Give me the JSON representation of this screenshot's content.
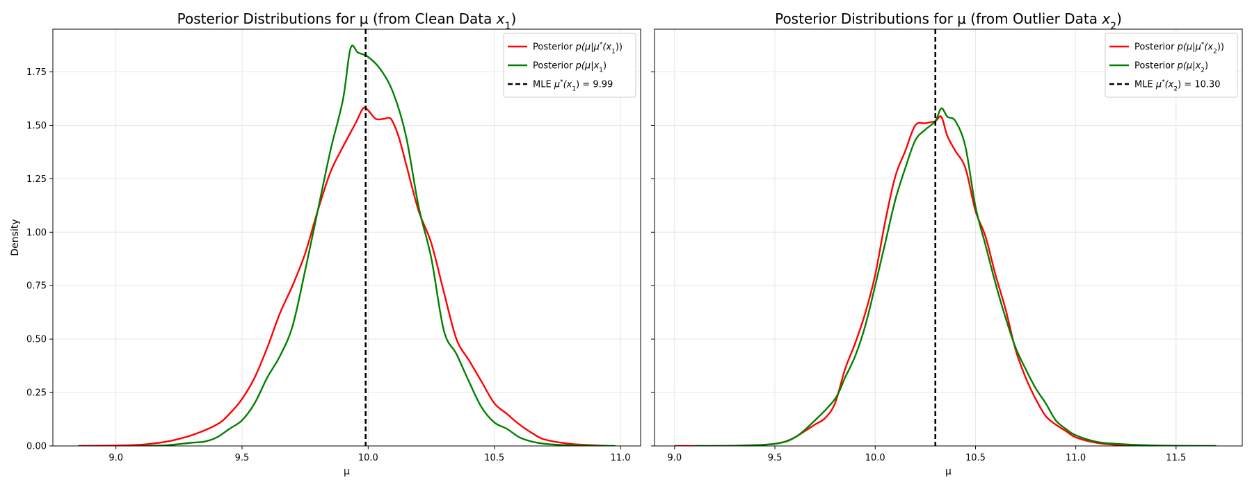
{
  "chart_data": [
    {
      "type": "line",
      "title_prefix": "Posterior Distributions for μ (from Clean Data ",
      "title_var": "x",
      "title_sub": "1",
      "title_suffix": ")",
      "xlabel": "μ",
      "ylabel": "Density",
      "xlim": [
        8.75,
        11.08
      ],
      "ylim": [
        0,
        1.95
      ],
      "xticks": [
        "9.0",
        "9.5",
        "10.0",
        "10.5",
        "11.0"
      ],
      "yticks": [
        "0.00",
        "0.25",
        "0.50",
        "0.75",
        "1.00",
        "1.25",
        "1.50",
        "1.75"
      ],
      "grid": true,
      "legend_position": "top-right",
      "colors": {
        "red": "#ff0000",
        "green": "#008000",
        "mle": "#000000"
      },
      "series": [
        {
          "name": "Posterior p(μ|μ*(x1))",
          "legend": {
            "pre": "Posterior ",
            "math": "p(μ|μ",
            "sup": "*",
            "mid": "(x",
            "sub": "1",
            "post": "))"
          },
          "color": "#ff0000",
          "points": [
            [
              8.85,
              0.0
            ],
            [
              9.0,
              0.002
            ],
            [
              9.1,
              0.006
            ],
            [
              9.2,
              0.02
            ],
            [
              9.3,
              0.05
            ],
            [
              9.4,
              0.1
            ],
            [
              9.45,
              0.15
            ],
            [
              9.5,
              0.22
            ],
            [
              9.55,
              0.32
            ],
            [
              9.6,
              0.46
            ],
            [
              9.65,
              0.62
            ],
            [
              9.7,
              0.75
            ],
            [
              9.75,
              0.9
            ],
            [
              9.8,
              1.1
            ],
            [
              9.85,
              1.28
            ],
            [
              9.9,
              1.4
            ],
            [
              9.95,
              1.51
            ],
            [
              9.98,
              1.58
            ],
            [
              10.0,
              1.57
            ],
            [
              10.03,
              1.53
            ],
            [
              10.06,
              1.53
            ],
            [
              10.09,
              1.53
            ],
            [
              10.12,
              1.45
            ],
            [
              10.15,
              1.32
            ],
            [
              10.2,
              1.1
            ],
            [
              10.25,
              0.95
            ],
            [
              10.3,
              0.72
            ],
            [
              10.35,
              0.5
            ],
            [
              10.4,
              0.4
            ],
            [
              10.45,
              0.3
            ],
            [
              10.5,
              0.2
            ],
            [
              10.55,
              0.15
            ],
            [
              10.6,
              0.1
            ],
            [
              10.65,
              0.06
            ],
            [
              10.7,
              0.03
            ],
            [
              10.8,
              0.01
            ],
            [
              10.9,
              0.003
            ],
            [
              10.95,
              0.0
            ]
          ]
        },
        {
          "name": "Posterior p(μ|x1)",
          "legend": {
            "pre": "Posterior ",
            "math": "p(μ|x",
            "sup": "",
            "mid": "",
            "sub": "1",
            "post": ")"
          },
          "color": "#008000",
          "points": [
            [
              9.1,
              0.0
            ],
            [
              9.2,
              0.003
            ],
            [
              9.3,
              0.015
            ],
            [
              9.35,
              0.02
            ],
            [
              9.4,
              0.04
            ],
            [
              9.45,
              0.08
            ],
            [
              9.5,
              0.12
            ],
            [
              9.55,
              0.2
            ],
            [
              9.6,
              0.32
            ],
            [
              9.65,
              0.42
            ],
            [
              9.7,
              0.56
            ],
            [
              9.75,
              0.82
            ],
            [
              9.8,
              1.1
            ],
            [
              9.85,
              1.38
            ],
            [
              9.9,
              1.62
            ],
            [
              9.93,
              1.86
            ],
            [
              9.96,
              1.84
            ],
            [
              10.0,
              1.82
            ],
            [
              10.05,
              1.76
            ],
            [
              10.1,
              1.65
            ],
            [
              10.15,
              1.45
            ],
            [
              10.2,
              1.12
            ],
            [
              10.25,
              0.88
            ],
            [
              10.3,
              0.54
            ],
            [
              10.35,
              0.43
            ],
            [
              10.4,
              0.3
            ],
            [
              10.45,
              0.18
            ],
            [
              10.5,
              0.11
            ],
            [
              10.55,
              0.08
            ],
            [
              10.6,
              0.04
            ],
            [
              10.65,
              0.02
            ],
            [
              10.7,
              0.01
            ],
            [
              10.8,
              0.003
            ],
            [
              10.98,
              0.0
            ]
          ]
        }
      ],
      "mle": {
        "value": 9.99,
        "legend": {
          "pre": "MLE ",
          "math": "μ",
          "sup": "*",
          "mid": "(x",
          "sub": "1",
          "post": ") = 9.99"
        },
        "color": "#000000"
      }
    },
    {
      "type": "line",
      "title_prefix": "Posterior Distributions for μ (from Outlier Data ",
      "title_var": "x",
      "title_sub": "2",
      "title_suffix": ")",
      "xlabel": "μ",
      "ylabel": "",
      "xlim": [
        8.9,
        11.83
      ],
      "ylim": [
        0,
        1.95
      ],
      "xticks": [
        "9.0",
        "9.5",
        "10.0",
        "10.5",
        "11.0",
        "11.5"
      ],
      "yticks": [],
      "grid": true,
      "legend_position": "top-right",
      "colors": {
        "red": "#ff0000",
        "green": "#008000",
        "mle": "#000000"
      },
      "series": [
        {
          "name": "Posterior p(μ|μ*(x2))",
          "legend": {
            "pre": "Posterior ",
            "math": "p(μ|μ",
            "sup": "*",
            "mid": "(x",
            "sub": "2",
            "post": "))"
          },
          "color": "#ff0000",
          "points": [
            [
              9.0,
              0.0
            ],
            [
              9.2,
              0.0
            ],
            [
              9.4,
              0.003
            ],
            [
              9.5,
              0.01
            ],
            [
              9.55,
              0.02
            ],
            [
              9.6,
              0.04
            ],
            [
              9.65,
              0.07
            ],
            [
              9.7,
              0.1
            ],
            [
              9.75,
              0.13
            ],
            [
              9.8,
              0.2
            ],
            [
              9.85,
              0.36
            ],
            [
              9.9,
              0.48
            ],
            [
              9.95,
              0.62
            ],
            [
              10.0,
              0.8
            ],
            [
              10.05,
              1.05
            ],
            [
              10.1,
              1.26
            ],
            [
              10.15,
              1.38
            ],
            [
              10.2,
              1.5
            ],
            [
              10.25,
              1.51
            ],
            [
              10.3,
              1.52
            ],
            [
              10.33,
              1.54
            ],
            [
              10.36,
              1.45
            ],
            [
              10.4,
              1.38
            ],
            [
              10.45,
              1.3
            ],
            [
              10.5,
              1.1
            ],
            [
              10.55,
              0.98
            ],
            [
              10.6,
              0.8
            ],
            [
              10.65,
              0.64
            ],
            [
              10.7,
              0.45
            ],
            [
              10.75,
              0.32
            ],
            [
              10.8,
              0.22
            ],
            [
              10.85,
              0.14
            ],
            [
              10.9,
              0.1
            ],
            [
              10.95,
              0.07
            ],
            [
              11.0,
              0.04
            ],
            [
              11.1,
              0.015
            ],
            [
              11.2,
              0.005
            ],
            [
              11.4,
              0.0
            ]
          ]
        },
        {
          "name": "Posterior p(μ|x2)",
          "legend": {
            "pre": "Posterior ",
            "math": "p(μ|x",
            "sup": "",
            "mid": "",
            "sub": "2",
            "post": ")"
          },
          "color": "#008000",
          "points": [
            [
              9.1,
              0.0
            ],
            [
              9.3,
              0.001
            ],
            [
              9.5,
              0.01
            ],
            [
              9.6,
              0.04
            ],
            [
              9.7,
              0.12
            ],
            [
              9.8,
              0.22
            ],
            [
              9.85,
              0.32
            ],
            [
              9.9,
              0.42
            ],
            [
              9.95,
              0.56
            ],
            [
              10.0,
              0.75
            ],
            [
              10.05,
              0.95
            ],
            [
              10.1,
              1.15
            ],
            [
              10.15,
              1.3
            ],
            [
              10.2,
              1.43
            ],
            [
              10.25,
              1.48
            ],
            [
              10.3,
              1.52
            ],
            [
              10.33,
              1.58
            ],
            [
              10.36,
              1.54
            ],
            [
              10.4,
              1.52
            ],
            [
              10.45,
              1.4
            ],
            [
              10.5,
              1.12
            ],
            [
              10.55,
              0.94
            ],
            [
              10.6,
              0.76
            ],
            [
              10.65,
              0.6
            ],
            [
              10.7,
              0.46
            ],
            [
              10.75,
              0.36
            ],
            [
              10.8,
              0.27
            ],
            [
              10.85,
              0.2
            ],
            [
              10.9,
              0.12
            ],
            [
              10.95,
              0.08
            ],
            [
              11.0,
              0.05
            ],
            [
              11.1,
              0.02
            ],
            [
              11.2,
              0.01
            ],
            [
              11.4,
              0.002
            ],
            [
              11.7,
              0.0
            ]
          ]
        }
      ],
      "mle": {
        "value": 10.3,
        "legend": {
          "pre": "MLE ",
          "math": "μ",
          "sup": "*",
          "mid": "(x",
          "sub": "2",
          "post": ") = 10.30"
        },
        "color": "#000000"
      }
    }
  ]
}
